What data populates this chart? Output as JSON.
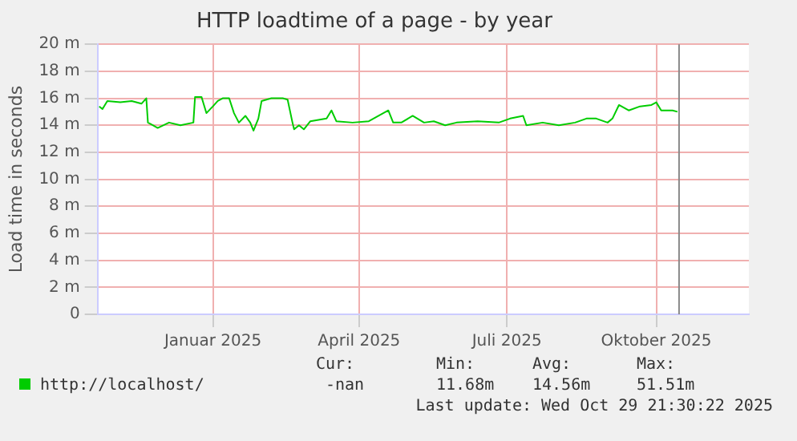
{
  "chart_data": {
    "type": "line",
    "title": "HTTP loadtime of a page - by year",
    "ylabel": "Load time in seconds",
    "x": [
      "2024-11-06",
      "2024-11-08",
      "2024-11-11",
      "2024-11-19",
      "2024-11-26",
      "2024-12-02",
      "2024-12-05",
      "2024-12-06",
      "2024-12-09",
      "2024-12-12",
      "2024-12-19",
      "2024-12-26",
      "2025-01-03",
      "2025-01-04",
      "2025-01-08",
      "2025-01-11",
      "2025-01-15",
      "2025-01-18",
      "2025-01-21",
      "2025-01-25",
      "2025-01-28",
      "2025-01-31",
      "2025-02-04",
      "2025-02-07",
      "2025-02-09",
      "2025-02-12",
      "2025-02-14",
      "2025-02-20",
      "2025-02-27",
      "2025-03-02",
      "2025-03-05",
      "2025-03-06",
      "2025-03-09",
      "2025-03-12",
      "2025-03-16",
      "2025-03-26",
      "2025-03-29",
      "2025-04-01",
      "2025-04-11",
      "2025-04-21",
      "2025-05-03",
      "2025-05-06",
      "2025-05-11",
      "2025-05-18",
      "2025-05-25",
      "2025-05-31",
      "2025-06-07",
      "2025-06-14",
      "2025-06-27",
      "2025-07-10",
      "2025-07-17",
      "2025-07-25",
      "2025-07-27",
      "2025-08-06",
      "2025-08-16",
      "2025-08-26",
      "2025-09-02",
      "2025-09-08",
      "2025-09-15",
      "2025-09-18",
      "2025-09-22",
      "2025-09-28",
      "2025-10-05",
      "2025-10-12",
      "2025-10-15",
      "2025-10-18",
      "2025-10-25",
      "2025-10-28"
    ],
    "series": [
      {
        "name": "http://localhost/",
        "color": "#00cc00",
        "values": [
          15.4,
          15.2,
          15.8,
          15.7,
          15.8,
          15.6,
          16.0,
          14.2,
          14.0,
          13.8,
          14.2,
          14.0,
          14.2,
          16.1,
          16.1,
          14.9,
          15.4,
          15.8,
          16.0,
          16.0,
          14.9,
          14.2,
          14.7,
          14.2,
          13.6,
          14.5,
          15.8,
          16.0,
          16.0,
          15.9,
          14.2,
          13.7,
          14.0,
          13.7,
          14.3,
          14.5,
          15.1,
          14.3,
          14.2,
          14.3,
          15.1,
          14.2,
          14.2,
          14.7,
          14.2,
          14.3,
          14.0,
          14.2,
          14.3,
          14.2,
          14.5,
          14.7,
          14.0,
          14.2,
          14.0,
          14.2,
          14.5,
          14.5,
          14.2,
          14.5,
          15.5,
          15.1,
          15.4,
          15.5,
          15.7,
          15.1,
          15.1,
          15.0
        ]
      }
    ],
    "xlim": [
      "2024-11-05",
      "2025-12-11"
    ],
    "xticks": [
      {
        "value": "2025-01-15",
        "label": "Januar 2025"
      },
      {
        "value": "2025-04-15",
        "label": "April 2025"
      },
      {
        "value": "2025-07-15",
        "label": "Juli 2025"
      },
      {
        "value": "2025-10-15",
        "label": "Oktober 2025"
      }
    ],
    "ylim": [
      0,
      20
    ],
    "yticks": [
      {
        "value": 0,
        "label": "0"
      },
      {
        "value": 2,
        "label": "2 m"
      },
      {
        "value": 4,
        "label": "4 m"
      },
      {
        "value": 6,
        "label": "6 m"
      },
      {
        "value": 8,
        "label": "8 m"
      },
      {
        "value": 10,
        "label": "10 m"
      },
      {
        "value": 12,
        "label": "12 m"
      },
      {
        "value": 14,
        "label": "14 m"
      },
      {
        "value": 16,
        "label": "16 m"
      },
      {
        "value": 18,
        "label": "18 m"
      },
      {
        "value": 20,
        "label": "20 m"
      }
    ],
    "ref_lines": [
      {
        "axis": "x",
        "value": "2025-10-29",
        "color": "#888888"
      }
    ],
    "grid": true,
    "legend": "bottom",
    "marker": "none",
    "line_style": "solid",
    "annotations": [
      "Cur:",
      "Min:",
      "Avg:",
      "Max:",
      "-nan",
      "11.68m",
      "14.56m",
      "51.51m",
      "Last update: Wed Oct 29 21:30:22 2025"
    ]
  }
}
